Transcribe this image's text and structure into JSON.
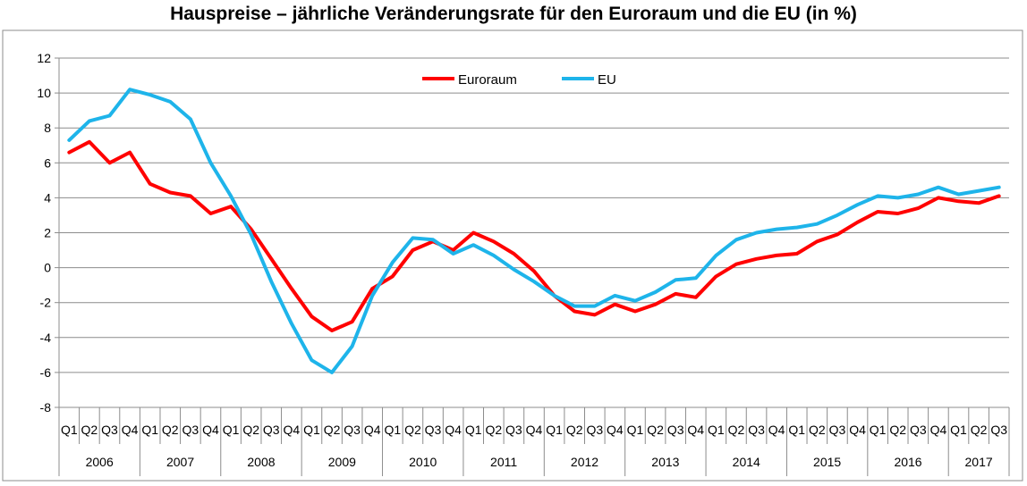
{
  "chart_data": {
    "type": "line",
    "title": "Hauspreise – jährliche Veränderungsrate für den Euroraum und die EU (in %)",
    "xlabel": "",
    "ylabel": "",
    "ylim": [
      -8,
      12
    ],
    "yticks": [
      "12",
      "10",
      "8",
      "6",
      "4",
      "2",
      "0",
      "-2",
      "-4",
      "-6",
      "-8"
    ],
    "years": [
      "2006",
      "2007",
      "2008",
      "2009",
      "2010",
      "2011",
      "2012",
      "2013",
      "2014",
      "2015",
      "2016",
      "2017"
    ],
    "quarters_per_year": [
      4,
      4,
      4,
      4,
      4,
      4,
      4,
      4,
      4,
      4,
      4,
      3
    ],
    "x": [
      "Q1",
      "Q2",
      "Q3",
      "Q4",
      "Q1",
      "Q2",
      "Q3",
      "Q4",
      "Q1",
      "Q2",
      "Q3",
      "Q4",
      "Q1",
      "Q2",
      "Q3",
      "Q4",
      "Q1",
      "Q2",
      "Q3",
      "Q4",
      "Q1",
      "Q2",
      "Q3",
      "Q4",
      "Q1",
      "Q2",
      "Q3",
      "Q4",
      "Q1",
      "Q2",
      "Q3",
      "Q4",
      "Q1",
      "Q2",
      "Q3",
      "Q4",
      "Q1",
      "Q2",
      "Q3",
      "Q4",
      "Q1",
      "Q2",
      "Q3",
      "Q4",
      "Q1",
      "Q2",
      "Q3"
    ],
    "grid": true,
    "legend_position": "top-center",
    "series": [
      {
        "name": "Euroraum",
        "color": "#ff0000",
        "values": [
          6.6,
          7.2,
          6.0,
          6.6,
          4.8,
          4.3,
          4.1,
          3.1,
          3.5,
          2.2,
          0.5,
          -1.2,
          -2.8,
          -3.6,
          -3.1,
          -1.2,
          -0.5,
          1.0,
          1.5,
          1.0,
          2.0,
          1.5,
          0.8,
          -0.2,
          -1.6,
          -2.5,
          -2.7,
          -2.1,
          -2.5,
          -2.1,
          -1.5,
          -1.7,
          -0.5,
          0.2,
          0.5,
          0.7,
          0.8,
          1.5,
          1.9,
          2.6,
          3.2,
          3.1,
          3.4,
          4.0,
          3.8,
          3.7,
          4.1
        ]
      },
      {
        "name": "EU",
        "color": "#1eb4ea",
        "values": [
          7.3,
          8.4,
          8.7,
          10.2,
          9.9,
          9.5,
          8.5,
          6.0,
          4.1,
          1.9,
          -0.8,
          -3.2,
          -5.3,
          -6.0,
          -4.5,
          -1.6,
          0.3,
          1.7,
          1.6,
          0.8,
          1.3,
          0.7,
          -0.1,
          -0.8,
          -1.6,
          -2.2,
          -2.2,
          -1.6,
          -1.9,
          -1.4,
          -0.7,
          -0.6,
          0.7,
          1.6,
          2.0,
          2.2,
          2.3,
          2.5,
          3.0,
          3.6,
          4.1,
          4.0,
          4.2,
          4.6,
          4.2,
          4.4,
          4.6
        ]
      }
    ]
  }
}
